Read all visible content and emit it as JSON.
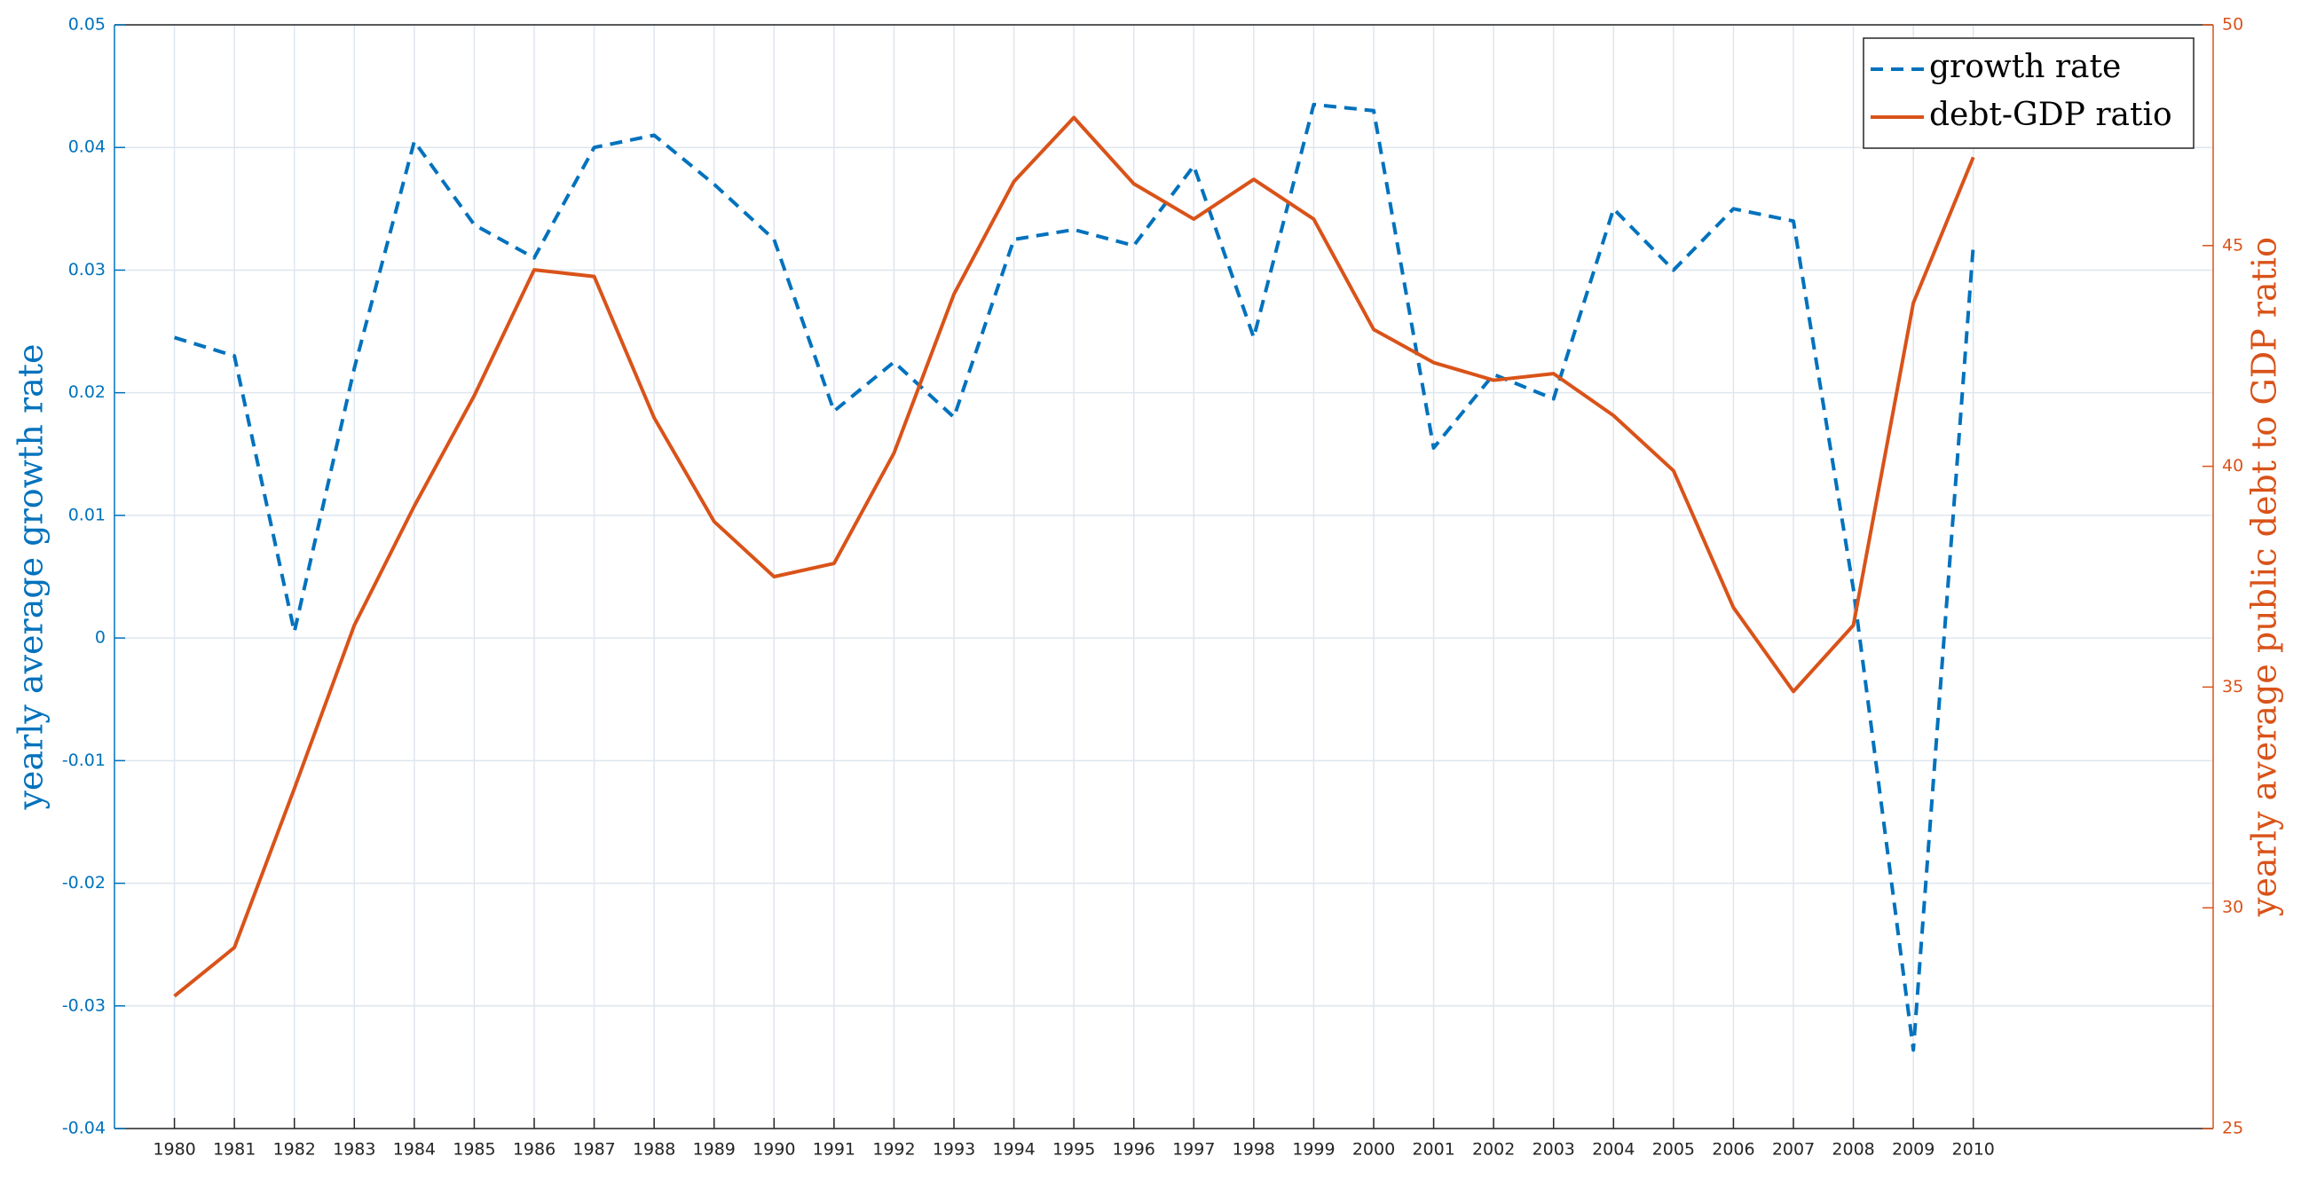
{
  "chart_data": {
    "type": "line",
    "ylabel": "yearly average growth rate",
    "y2label": "yearly average public debt to GDP ratio",
    "x": [
      1980,
      1981,
      1982,
      1983,
      1984,
      1985,
      1986,
      1987,
      1988,
      1989,
      1990,
      1991,
      1992,
      1993,
      1994,
      1995,
      1996,
      1997,
      1998,
      1999,
      2000,
      2001,
      2002,
      2003,
      2004,
      2005,
      2006,
      2007,
      2008,
      2009,
      2010
    ],
    "series": [
      {
        "name": "growth rate",
        "color": "#0072BD",
        "line_style": "dashed",
        "axis": "y",
        "values": [
          0.0245,
          0.023,
          0.0005,
          0.022,
          0.0405,
          0.0337,
          0.031,
          0.04,
          0.041,
          0.037,
          0.0325,
          0.0185,
          0.0225,
          0.018,
          0.0325,
          0.0333,
          0.032,
          0.0385,
          0.0245,
          0.0435,
          0.043,
          0.0155,
          0.0215,
          0.0195,
          0.035,
          0.03,
          0.035,
          0.034,
          0.004,
          -0.0336,
          0.032
        ]
      },
      {
        "name": "debt-GDP ratio",
        "color": "#D95319",
        "line_style": "solid",
        "axis": "y2",
        "values": [
          28.0,
          29.1,
          32.7,
          36.4,
          39.1,
          41.6,
          44.45,
          44.3,
          41.1,
          38.75,
          37.5,
          37.8,
          40.3,
          43.9,
          46.45,
          47.9,
          46.4,
          45.6,
          46.5,
          45.6,
          43.1,
          42.35,
          41.95,
          42.1,
          41.15,
          39.9,
          36.8,
          34.9,
          36.4,
          43.7,
          47.0
        ]
      }
    ],
    "xlim": [
      1979,
      2014
    ],
    "xticks": [
      1980,
      1981,
      1982,
      1983,
      1984,
      1985,
      1986,
      1987,
      1988,
      1989,
      1990,
      1991,
      1992,
      1993,
      1994,
      1995,
      1996,
      1997,
      1998,
      1999,
      2000,
      2001,
      2002,
      2003,
      2004,
      2005,
      2006,
      2007,
      2008,
      2009,
      2010
    ],
    "ylim": [
      -0.04,
      0.05
    ],
    "yticks": [
      -0.04,
      -0.03,
      -0.02,
      -0.01,
      0,
      0.01,
      0.02,
      0.03,
      0.04,
      0.05
    ],
    "y2lim": [
      25,
      50
    ],
    "y2ticks": [
      25,
      30,
      35,
      40,
      45,
      50
    ],
    "grid": true,
    "legend": "northeast"
  }
}
